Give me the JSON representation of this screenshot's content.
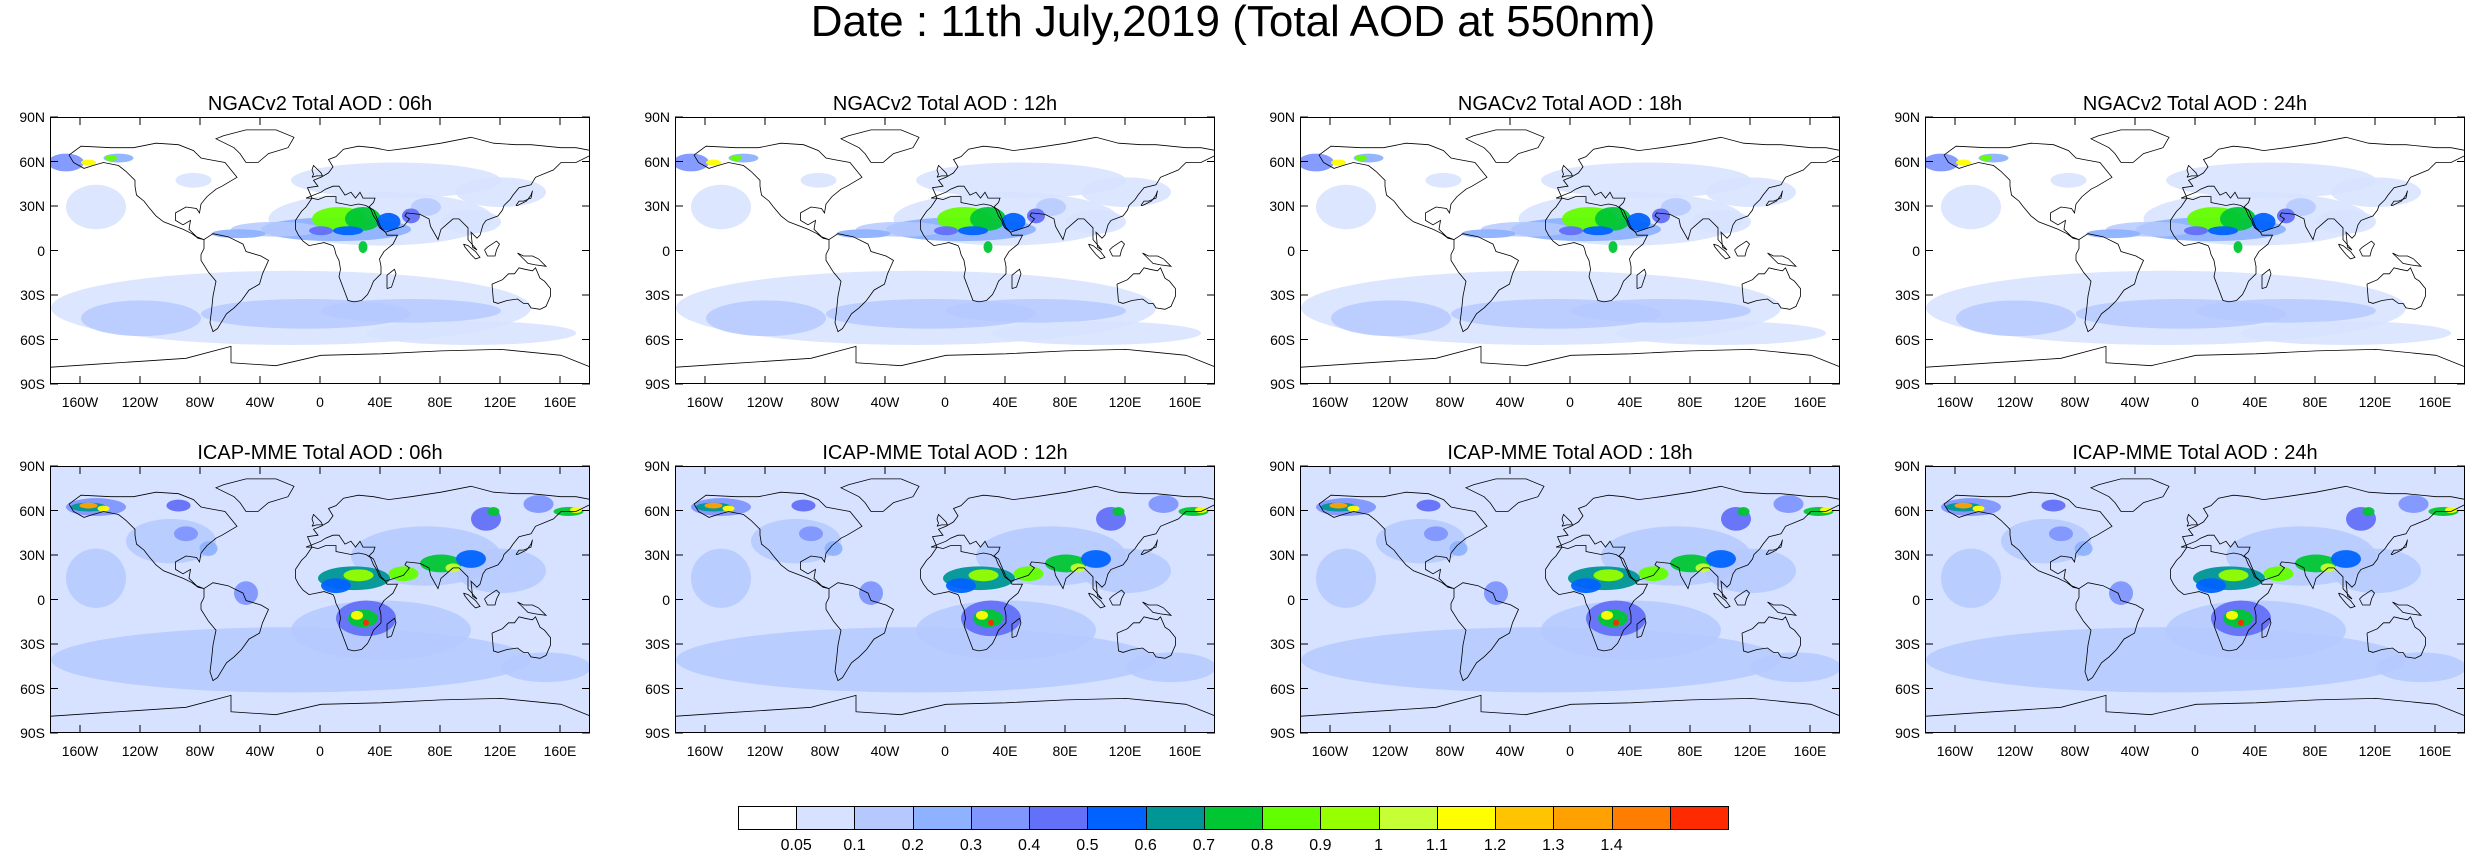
{
  "title": "Date : 11th July,2019 (Total AOD at 550nm)",
  "panels": [
    {
      "title": "NGACv2 Total AOD : 06h",
      "model": "ngac"
    },
    {
      "title": "NGACv2 Total AOD : 12h",
      "model": "ngac"
    },
    {
      "title": "NGACv2 Total AOD : 18h",
      "model": "ngac"
    },
    {
      "title": "NGACv2 Total AOD : 24h",
      "model": "ngac"
    },
    {
      "title": "ICAP-MME Total AOD : 06h",
      "model": "icap"
    },
    {
      "title": "ICAP-MME Total AOD : 12h",
      "model": "icap"
    },
    {
      "title": "ICAP-MME Total AOD : 18h",
      "model": "icap"
    },
    {
      "title": "ICAP-MME Total AOD : 24h",
      "model": "icap"
    }
  ],
  "lat_labels": [
    "90N",
    "60N",
    "30N",
    "0",
    "30S",
    "60S",
    "90S"
  ],
  "lon_labels": [
    "160W",
    "120W",
    "80W",
    "40W",
    "0",
    "40E",
    "80E",
    "120E",
    "160E"
  ],
  "colorbar": {
    "labels": [
      "0.05",
      "0.1",
      "0.2",
      "0.3",
      "0.4",
      "0.5",
      "0.6",
      "0.7",
      "0.8",
      "0.9",
      "1",
      "1.1",
      "1.2",
      "1.3",
      "1.4"
    ],
    "colors": [
      "#ffffff",
      "#d6e2ff",
      "#b5c9ff",
      "#8eb2ff",
      "#7f96ff",
      "#6370f8",
      "#0063ff",
      "#009696",
      "#00c633",
      "#63ff00",
      "#96ff00",
      "#c6ff33",
      "#ffff00",
      "#ffc400",
      "#ffa100",
      "#ff7d00",
      "#ff2a00"
    ]
  }
}
